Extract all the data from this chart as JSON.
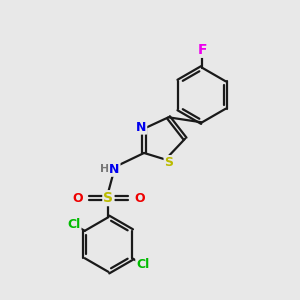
{
  "background_color": "#e8e8e8",
  "bond_color": "#1a1a1a",
  "bond_width": 1.6,
  "fig_bg": "#e8e8e8",
  "atom_colors": {
    "F": "#ee00ee",
    "N": "#0000ee",
    "S_thiazole": "#bbbb00",
    "S_sulfonyl": "#bbbb00",
    "O": "#ee0000",
    "Cl": "#00bb00",
    "H": "#777777",
    "C": "#1a1a1a"
  },
  "font_size": 9
}
